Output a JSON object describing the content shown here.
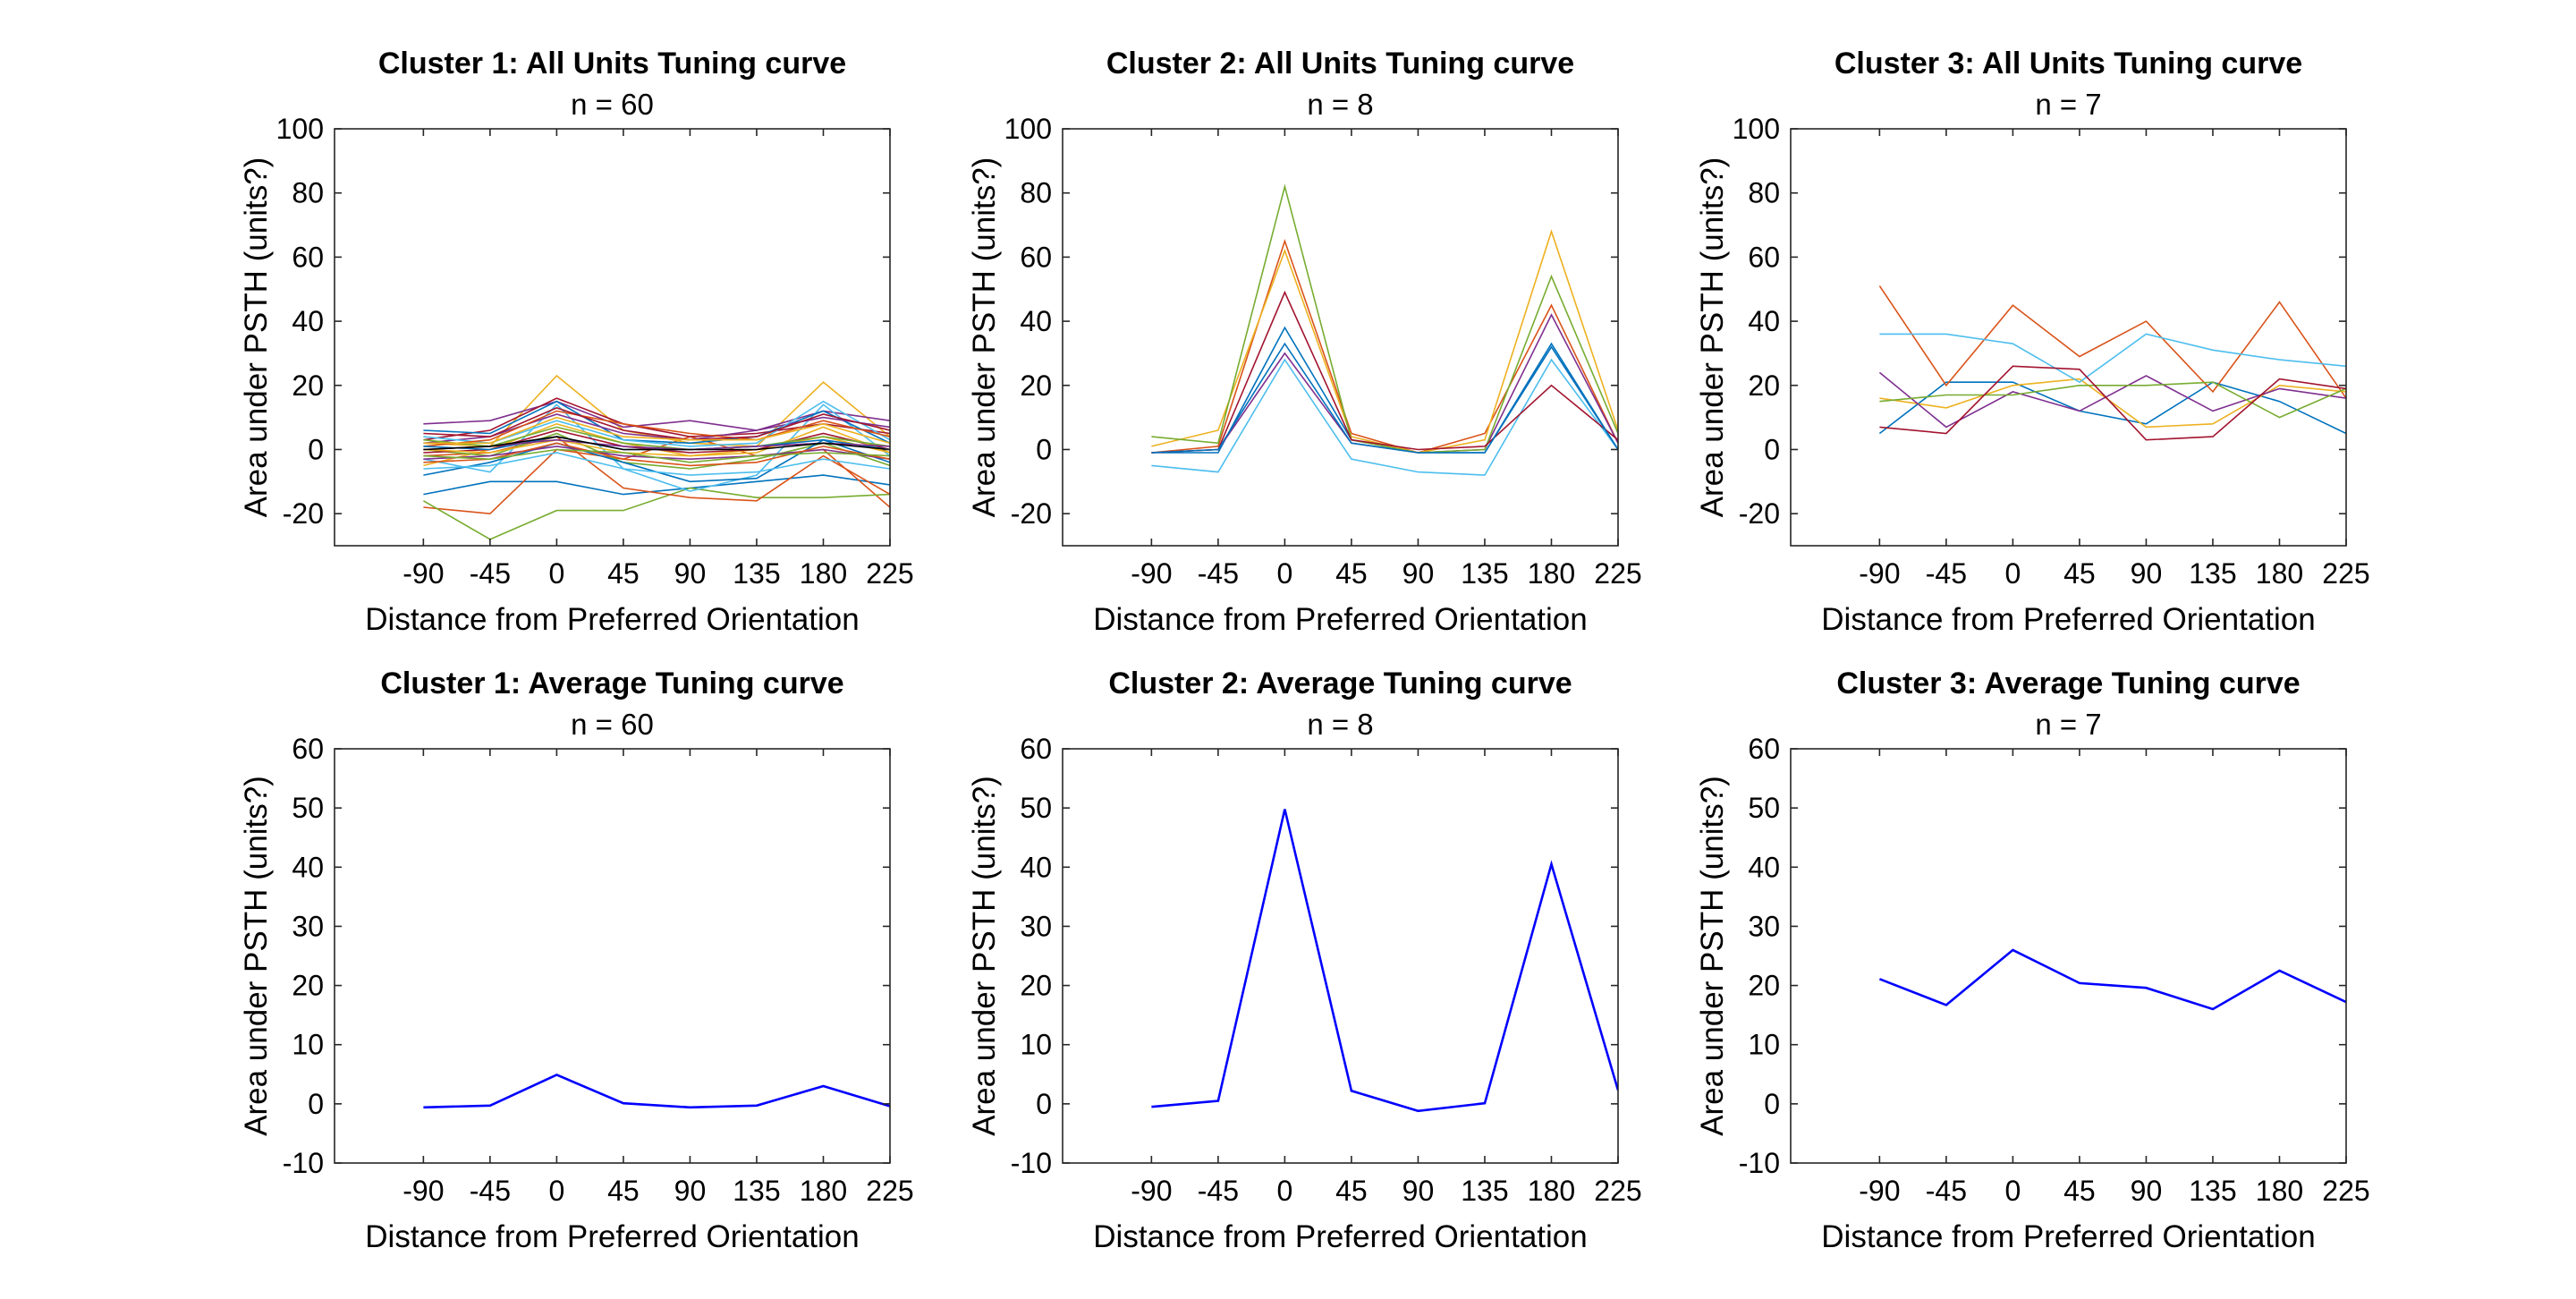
{
  "chart_data": [
    {
      "type": "line",
      "title": "Cluster 1: All Units Tuning curve",
      "subtitle": "n = 60",
      "xlabel": "Distance from Preferred Orientation",
      "ylabel": "Area under PSTH (units?)",
      "x": [
        -90,
        -45,
        0,
        45,
        90,
        135,
        180,
        225
      ],
      "xticks": [
        "-90",
        "-45",
        "0",
        "45",
        "90",
        "135",
        "180",
        "225"
      ],
      "xlim": [
        -150,
        225
      ],
      "ylim": [
        -30,
        100
      ],
      "yticks": [
        -20,
        0,
        20,
        40,
        60,
        80,
        100
      ],
      "grid": false,
      "series": [
        {
          "color": "#0072BD",
          "values": [
            -14,
            -10,
            -10,
            -14,
            -12,
            -10,
            -8,
            -11
          ]
        },
        {
          "color": "#D95319",
          "values": [
            -18,
            -20,
            0,
            -3,
            4,
            -2,
            0,
            -18
          ]
        },
        {
          "color": "#EDB120",
          "values": [
            2,
            1,
            23,
            6,
            2,
            1,
            21,
            4
          ]
        },
        {
          "color": "#7E2F8E",
          "values": [
            8,
            9,
            15,
            7,
            9,
            6,
            12,
            9
          ]
        },
        {
          "color": "#77AC30",
          "values": [
            -16,
            -28,
            -19,
            -19,
            -12,
            -15,
            -15,
            -14
          ]
        },
        {
          "color": "#4DBEEE",
          "values": [
            -3,
            -7,
            14,
            -6,
            -13,
            -8,
            14,
            -2
          ]
        },
        {
          "color": "#A2142F",
          "values": [
            3,
            6,
            16,
            8,
            4,
            5,
            8,
            5
          ]
        },
        {
          "color": "#0072BD",
          "values": [
            6,
            5,
            15,
            3,
            2,
            4,
            12,
            2
          ]
        },
        {
          "color": "#D95319",
          "values": [
            -2,
            -1,
            4,
            -12,
            -15,
            -16,
            -2,
            -14
          ]
        },
        {
          "color": "#EDB120",
          "values": [
            -5,
            0,
            8,
            2,
            -2,
            0,
            4,
            -1
          ]
        },
        {
          "color": "#7E2F8E",
          "values": [
            2,
            4,
            11,
            5,
            3,
            6,
            10,
            7
          ]
        },
        {
          "color": "#77AC30",
          "values": [
            0,
            -2,
            5,
            -4,
            -6,
            -3,
            2,
            -5
          ]
        },
        {
          "color": "#4DBEEE",
          "values": [
            4,
            2,
            9,
            3,
            1,
            2,
            15,
            3
          ]
        },
        {
          "color": "#A2142F",
          "values": [
            -1,
            0,
            6,
            1,
            -1,
            0,
            5,
            0
          ]
        },
        {
          "color": "#0072BD",
          "values": [
            -8,
            -4,
            2,
            -4,
            -10,
            -9,
            3,
            -4
          ]
        },
        {
          "color": "#D95319",
          "values": [
            1,
            3,
            12,
            8,
            5,
            3,
            9,
            4
          ]
        },
        {
          "color": "#EDB120",
          "values": [
            0,
            -1,
            3,
            -1,
            -2,
            -1,
            7,
            -1
          ]
        },
        {
          "color": "#7E2F8E",
          "values": [
            -3,
            -2,
            1,
            -2,
            -3,
            -2,
            0,
            -3
          ]
        },
        {
          "color": "#77AC30",
          "values": [
            3,
            1,
            7,
            2,
            0,
            1,
            4,
            1
          ]
        },
        {
          "color": "#4DBEEE",
          "values": [
            -6,
            -5,
            -1,
            -6,
            -8,
            -7,
            -3,
            -6
          ]
        },
        {
          "color": "#A2142F",
          "values": [
            5,
            4,
            13,
            6,
            3,
            4,
            11,
            6
          ]
        },
        {
          "color": "#0072BD",
          "values": [
            1,
            0,
            4,
            0,
            0,
            1,
            3,
            0
          ]
        },
        {
          "color": "#D95319",
          "values": [
            -4,
            -3,
            2,
            -3,
            -5,
            -4,
            1,
            -3
          ]
        },
        {
          "color": "#EDB120",
          "values": [
            2,
            2,
            10,
            4,
            3,
            3,
            8,
            2
          ]
        },
        {
          "color": "#7E2F8E",
          "values": [
            0,
            1,
            3,
            1,
            0,
            1,
            2,
            1
          ]
        },
        {
          "color": "#77AC30",
          "values": [
            -2,
            -3,
            0,
            -1,
            -4,
            -2,
            -1,
            -2
          ]
        },
        {
          "color": "#000000",
          "values": [
            0,
            1,
            4,
            0,
            0,
            0,
            2,
            0
          ]
        }
      ]
    },
    {
      "type": "line",
      "title": "Cluster 2: All Units Tuning curve",
      "subtitle": "n = 8",
      "xlabel": "Distance from Preferred Orientation",
      "ylabel": "Area under PSTH (units?)",
      "x": [
        -90,
        -45,
        0,
        45,
        90,
        135,
        180,
        225
      ],
      "xticks": [
        "-90",
        "-45",
        "0",
        "45",
        "90",
        "135",
        "180",
        "225"
      ],
      "xlim": [
        -150,
        225
      ],
      "ylim": [
        -30,
        100
      ],
      "yticks": [
        -20,
        0,
        20,
        40,
        60,
        80,
        100
      ],
      "grid": false,
      "series": [
        {
          "color": "#0072BD",
          "values": [
            -1,
            -1,
            38,
            3,
            -1,
            -1,
            33,
            0
          ]
        },
        {
          "color": "#D95319",
          "values": [
            -1,
            1,
            65,
            5,
            -1,
            5,
            45,
            2
          ]
        },
        {
          "color": "#EDB120",
          "values": [
            1,
            6,
            62,
            4,
            -1,
            3,
            68,
            6
          ]
        },
        {
          "color": "#7E2F8E",
          "values": [
            -1,
            0,
            30,
            2,
            -1,
            0,
            42,
            2
          ]
        },
        {
          "color": "#77AC30",
          "values": [
            4,
            2,
            82,
            3,
            -1,
            0,
            54,
            5
          ]
        },
        {
          "color": "#4DBEEE",
          "values": [
            -5,
            -7,
            28,
            -3,
            -7,
            -8,
            28,
            0
          ]
        },
        {
          "color": "#A2142F",
          "values": [
            -1,
            0,
            49,
            3,
            0,
            1,
            20,
            3
          ]
        },
        {
          "color": "#0072BD",
          "values": [
            -1,
            0,
            33,
            2,
            -1,
            -1,
            32,
            0
          ]
        }
      ]
    },
    {
      "type": "line",
      "title": "Cluster 3: All Units Tuning curve",
      "subtitle": "n = 7",
      "xlabel": "Distance from Preferred Orientation",
      "ylabel": "Area under PSTH (units?)",
      "x": [
        -90,
        -45,
        0,
        45,
        90,
        135,
        180,
        225
      ],
      "xticks": [
        "-90",
        "-45",
        "0",
        "45",
        "90",
        "135",
        "180",
        "225"
      ],
      "xlim": [
        -150,
        225
      ],
      "ylim": [
        -30,
        100
      ],
      "yticks": [
        -20,
        0,
        20,
        40,
        60,
        80,
        100
      ],
      "grid": false,
      "series": [
        {
          "color": "#0072BD",
          "values": [
            5,
            21,
            21,
            12,
            8,
            21,
            15,
            5
          ]
        },
        {
          "color": "#D95319",
          "values": [
            51,
            20,
            45,
            29,
            40,
            18,
            46,
            16
          ]
        },
        {
          "color": "#EDB120",
          "values": [
            16,
            13,
            20,
            22,
            7,
            8,
            20,
            18
          ]
        },
        {
          "color": "#7E2F8E",
          "values": [
            24,
            7,
            18,
            12,
            23,
            12,
            19,
            16
          ]
        },
        {
          "color": "#77AC30",
          "values": [
            15,
            17,
            17,
            20,
            20,
            21,
            10,
            19
          ]
        },
        {
          "color": "#4DBEEE",
          "values": [
            36,
            36,
            33,
            21,
            36,
            31,
            28,
            26
          ]
        },
        {
          "color": "#A2142F",
          "values": [
            7,
            5,
            26,
            25,
            3,
            4,
            22,
            19
          ]
        }
      ]
    },
    {
      "type": "line",
      "title": "Cluster 1: Average Tuning curve",
      "subtitle": "n = 60",
      "xlabel": "Distance from Preferred Orientation",
      "ylabel": "Area under PSTH (units?)",
      "x": [
        -90,
        -45,
        0,
        45,
        90,
        135,
        180,
        225
      ],
      "xticks": [
        "-90",
        "-45",
        "0",
        "45",
        "90",
        "135",
        "180",
        "225"
      ],
      "xlim": [
        -150,
        225
      ],
      "ylim": [
        -10,
        60
      ],
      "yticks": [
        -10,
        0,
        10,
        20,
        30,
        40,
        50,
        60
      ],
      "grid": false,
      "series": [
        {
          "color": "#0000FF",
          "values": [
            -0.6,
            -0.3,
            4.9,
            0.1,
            -0.6,
            -0.3,
            3.0,
            -0.4
          ]
        }
      ]
    },
    {
      "type": "line",
      "title": "Cluster 2: Average Tuning curve",
      "subtitle": "n = 8",
      "xlabel": "Distance from Preferred Orientation",
      "ylabel": "Area under PSTH (units?)",
      "x": [
        -90,
        -45,
        0,
        45,
        90,
        135,
        180,
        225
      ],
      "xticks": [
        "-90",
        "-45",
        "0",
        "45",
        "90",
        "135",
        "180",
        "225"
      ],
      "xlim": [
        -150,
        225
      ],
      "ylim": [
        -10,
        60
      ],
      "yticks": [
        -10,
        0,
        10,
        20,
        30,
        40,
        50,
        60
      ],
      "grid": false,
      "series": [
        {
          "color": "#0000FF",
          "values": [
            -0.5,
            0.5,
            49.8,
            2.2,
            -1.2,
            0.1,
            40.5,
            2.3
          ]
        }
      ]
    },
    {
      "type": "line",
      "title": "Cluster 3: Average Tuning curve",
      "subtitle": "n = 7",
      "xlabel": "Distance from Preferred Orientation",
      "ylabel": "Area under PSTH (units?)",
      "x": [
        -90,
        -45,
        0,
        45,
        90,
        135,
        180,
        225
      ],
      "xticks": [
        "-90",
        "-45",
        "0",
        "45",
        "90",
        "135",
        "180",
        "225"
      ],
      "xlim": [
        -150,
        225
      ],
      "ylim": [
        -10,
        60
      ],
      "yticks": [
        -10,
        0,
        10,
        20,
        30,
        40,
        50,
        60
      ],
      "grid": false,
      "series": [
        {
          "color": "#0000FF",
          "values": [
            21.1,
            16.7,
            26.0,
            20.4,
            19.6,
            16.0,
            22.5,
            17.2
          ]
        }
      ]
    }
  ]
}
